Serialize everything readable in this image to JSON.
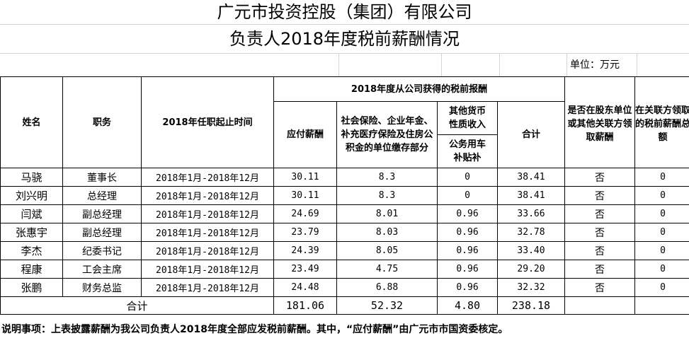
{
  "title": "广元市投资控股（集团）有限公司",
  "subtitle": "负责人2018年度税前薪酬情况",
  "unit": "单位：万元",
  "headers": {
    "name": "姓名",
    "position": "职务",
    "term": "2018年任职起止时间",
    "group": "2018年度从公司获得的税前报酬",
    "salary": "应付薪酬",
    "social": "社会保险、企业年金、补充医疗保险及住房公积金的单位缴存部分",
    "other": "其他货币性质收入",
    "car": "公务用车补贴补",
    "sum": "合计",
    "shareholder": "是否在股东单位或其他关联方领取薪酬",
    "related": "在关联方领取的税前薪酬总额"
  },
  "rows": [
    {
      "name": "马骁",
      "position": "董事长",
      "term": "2018年1月-2018年12月",
      "salary": "30.11",
      "social": "8.3",
      "car": "0",
      "sum": "38.41",
      "shareholder": "否",
      "related": "0"
    },
    {
      "name": "刘兴明",
      "position": "总经理",
      "term": "2018年1月-2018年12月",
      "salary": "30.11",
      "social": "8.3",
      "car": "0",
      "sum": "38.41",
      "shareholder": "否",
      "related": "0"
    },
    {
      "name": "闫斌",
      "position": "副总经理",
      "term": "2018年1月-2018年12月",
      "salary": "24.69",
      "social": "8.01",
      "car": "0.96",
      "sum": "33.66",
      "shareholder": "否",
      "related": "0"
    },
    {
      "name": "张惠宇",
      "position": "副总经理",
      "term": "2018年1月-2018年12月",
      "salary": "23.79",
      "social": "8.03",
      "car": "0.96",
      "sum": "32.78",
      "shareholder": "否",
      "related": "0"
    },
    {
      "name": "李杰",
      "position": "纪委书记",
      "term": "2018年1月-2018年12月",
      "salary": "24.39",
      "social": "8.05",
      "car": "0.96",
      "sum": "33.40",
      "shareholder": "否",
      "related": "0"
    },
    {
      "name": "程康",
      "position": "工会主席",
      "term": "2018年1月-2018年12月",
      "salary": "23.49",
      "social": "4.75",
      "car": "0.96",
      "sum": "29.20",
      "shareholder": "否",
      "related": "0"
    },
    {
      "name": "张鹏",
      "position": "财务总监",
      "term": "2018年1月-2018年12月",
      "salary": "24.48",
      "social": "6.88",
      "car": "0.96",
      "sum": "32.32",
      "shareholder": "否",
      "related": "0"
    }
  ],
  "total": {
    "label": "合计",
    "salary": "181.06",
    "social": "52.32",
    "car": "4.80",
    "sum": "238.18"
  },
  "note": "说明事项：上表披露薪酬为我公司负责人2018年度全部应发税前薪酬。其中，“应付薪酬”由广元市市国资委核定。"
}
